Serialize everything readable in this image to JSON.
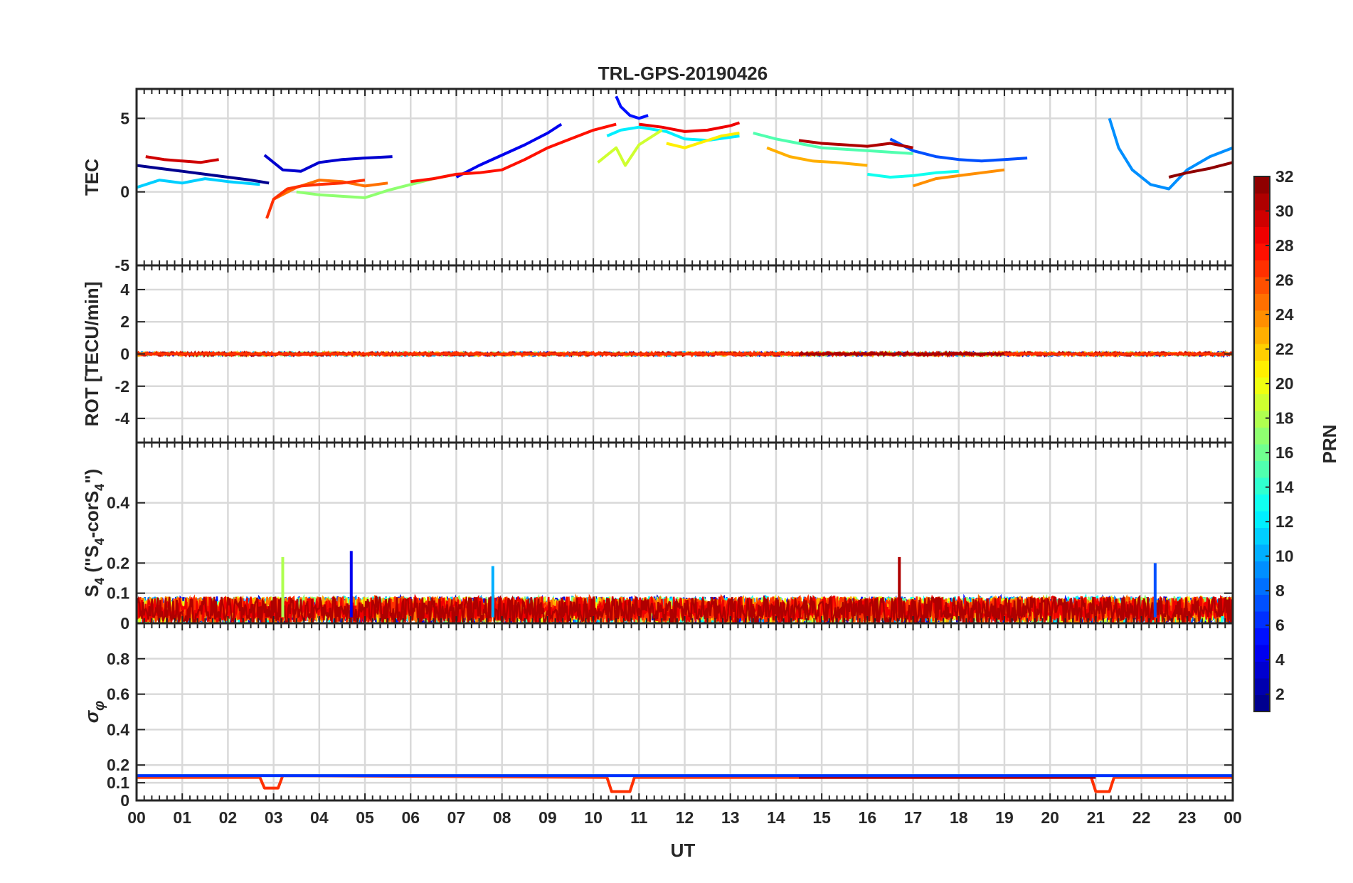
{
  "title": "TRL-GPS-20190426",
  "xlabel": "UT",
  "x_tick_labels": [
    "00",
    "01",
    "02",
    "03",
    "04",
    "05",
    "06",
    "07",
    "08",
    "09",
    "10",
    "11",
    "12",
    "13",
    "14",
    "15",
    "16",
    "17",
    "18",
    "19",
    "20",
    "21",
    "22",
    "23",
    "00"
  ],
  "colorbar": {
    "label": "PRN",
    "range": [
      1,
      32
    ],
    "ticks": [
      2,
      4,
      6,
      8,
      10,
      12,
      14,
      16,
      18,
      20,
      22,
      24,
      26,
      28,
      30,
      32
    ],
    "colormap": "jet",
    "levels": 32
  },
  "panels": [
    {
      "id": "tec",
      "ylabel": "TEC",
      "ylim": [
        -5,
        7
      ],
      "yticks": [
        -5,
        0,
        5
      ],
      "grid": true
    },
    {
      "id": "rot",
      "ylabel": "ROT [TECU/min]",
      "ylim": [
        -5.5,
        5.5
      ],
      "yticks": [
        -4,
        -2,
        0,
        2,
        4
      ],
      "grid": true
    },
    {
      "id": "s4",
      "ylabel": "S4 (\"S4-corS4\")",
      "ylim": [
        0,
        0.6
      ],
      "yticks": [
        0,
        0.1,
        0.2,
        0.4
      ],
      "grid": true
    },
    {
      "id": "sigma",
      "ylabel": "σφ",
      "ylim": [
        0,
        1
      ],
      "yticks": [
        0,
        0.1,
        0.2,
        0.4,
        0.6,
        0.8
      ],
      "grid": true
    }
  ],
  "chart_data": [
    {
      "type": "line",
      "panel": "tec",
      "x_unit": "UT hours",
      "series": [
        {
          "prn": 1,
          "x": [
            0,
            0.5,
            1,
            1.5,
            2,
            2.5,
            2.9
          ],
          "y": [
            1.8,
            1.6,
            1.4,
            1.2,
            1.0,
            0.8,
            0.6
          ]
        },
        {
          "prn": 3,
          "x": [
            2.8,
            3.2,
            3.6,
            4,
            4.5,
            5,
            5.6
          ],
          "y": [
            2.5,
            1.5,
            1.4,
            2.0,
            2.2,
            2.3,
            2.4
          ]
        },
        {
          "prn": 4,
          "x": [
            7,
            7.5,
            8,
            8.5,
            9,
            9.3
          ],
          "y": [
            1.0,
            1.8,
            2.5,
            3.2,
            4.0,
            4.6
          ]
        },
        {
          "prn": 5,
          "x": [
            10.5,
            10.6,
            10.8,
            11,
            11.2
          ],
          "y": [
            6.5,
            5.8,
            5.2,
            5.0,
            5.2
          ]
        },
        {
          "prn": 7,
          "x": [
            16.5,
            17,
            17.5,
            18,
            18.5,
            19,
            19.5
          ],
          "y": [
            3.6,
            2.8,
            2.4,
            2.2,
            2.1,
            2.2,
            2.3
          ]
        },
        {
          "prn": 9,
          "x": [
            21.3,
            21.5,
            21.8,
            22.2,
            22.6,
            23,
            23.5,
            24
          ],
          "y": [
            5.0,
            3.0,
            1.5,
            0.5,
            0.2,
            1.5,
            2.4,
            3.0
          ]
        },
        {
          "prn": 11,
          "x": [
            0,
            0.5,
            1,
            1.5,
            2,
            2.7
          ],
          "y": [
            0.3,
            0.8,
            0.6,
            0.9,
            0.7,
            0.5
          ]
        },
        {
          "prn": 12,
          "x": [
            10.3,
            10.6,
            11,
            11.6,
            12,
            12.5,
            13.2
          ],
          "y": [
            3.8,
            4.2,
            4.4,
            4.1,
            3.6,
            3.5,
            3.8
          ]
        },
        {
          "prn": 13,
          "x": [
            16,
            16.5,
            17,
            17.5,
            18
          ],
          "y": [
            1.2,
            1.0,
            1.1,
            1.3,
            1.4
          ]
        },
        {
          "prn": 15,
          "x": [
            13.5,
            14,
            14.5,
            15,
            15.5,
            16,
            17
          ],
          "y": [
            4.0,
            3.6,
            3.3,
            3.0,
            2.9,
            2.8,
            2.6
          ]
        },
        {
          "prn": 17,
          "x": [
            3.5,
            4,
            4.5,
            5,
            5.5,
            6,
            6.5,
            7
          ],
          "y": [
            0.0,
            -0.2,
            -0.3,
            -0.4,
            0.1,
            0.5,
            0.9,
            1.2
          ]
        },
        {
          "prn": 19,
          "x": [
            10.1,
            10.3,
            10.5,
            10.7,
            11,
            11.5
          ],
          "y": [
            2.0,
            2.5,
            3.0,
            1.8,
            3.2,
            4.2
          ]
        },
        {
          "prn": 21,
          "x": [
            11.6,
            12,
            12.4,
            12.8,
            13.2
          ],
          "y": [
            3.3,
            3.0,
            3.4,
            3.8,
            4.0
          ]
        },
        {
          "prn": 23,
          "x": [
            13.8,
            14.3,
            14.8,
            15.3,
            16
          ],
          "y": [
            3.0,
            2.4,
            2.1,
            2.0,
            1.8
          ]
        },
        {
          "prn": 24,
          "x": [
            17,
            17.5,
            18,
            18.5,
            19
          ],
          "y": [
            0.4,
            0.9,
            1.1,
            1.3,
            1.5
          ]
        },
        {
          "prn": 25,
          "x": [
            3,
            3.5,
            4,
            4.5,
            5,
            5.5
          ],
          "y": [
            -0.5,
            0.3,
            0.8,
            0.7,
            0.4,
            0.6
          ]
        },
        {
          "prn": 27,
          "x": [
            2.85,
            3,
            3.3,
            3.6,
            4,
            4.5,
            5
          ],
          "y": [
            -1.8,
            -0.5,
            0.2,
            0.4,
            0.5,
            0.6,
            0.8
          ]
        },
        {
          "prn": 28,
          "x": [
            6,
            6.5,
            7,
            7.5,
            8,
            8.5,
            9,
            9.5,
            10,
            10.5
          ],
          "y": [
            0.7,
            0.9,
            1.2,
            1.3,
            1.5,
            2.2,
            3.0,
            3.6,
            4.2,
            4.6
          ]
        },
        {
          "prn": 29,
          "x": [
            11,
            11.5,
            12,
            12.5,
            13,
            13.2
          ],
          "y": [
            4.6,
            4.4,
            4.1,
            4.2,
            4.5,
            4.7
          ]
        },
        {
          "prn": 30,
          "x": [
            0.2,
            0.6,
            1,
            1.4,
            1.8
          ],
          "y": [
            2.4,
            2.2,
            2.1,
            2.0,
            2.2
          ]
        },
        {
          "prn": 31,
          "x": [
            14.5,
            15,
            15.5,
            16,
            16.5,
            17
          ],
          "y": [
            3.5,
            3.3,
            3.2,
            3.1,
            3.3,
            3.0
          ]
        },
        {
          "prn": 32,
          "x": [
            22.6,
            23,
            23.5,
            24
          ],
          "y": [
            1.0,
            1.3,
            1.6,
            2.0
          ]
        }
      ]
    },
    {
      "type": "line",
      "panel": "rot",
      "x_unit": "UT hours",
      "series": [
        {
          "prn": 3,
          "x": [
            0,
            24
          ],
          "y": [
            0,
            0
          ]
        },
        {
          "prn": 17,
          "x": [
            0,
            24
          ],
          "y": [
            0,
            0
          ]
        },
        {
          "prn": 23,
          "x": [
            13.5,
            14.5
          ],
          "y": [
            0,
            0
          ]
        },
        {
          "prn": 27,
          "x": [
            0,
            24
          ],
          "y": [
            0,
            0
          ]
        },
        {
          "prn": 31,
          "x": [
            14.5,
            19
          ],
          "y": [
            0,
            0
          ]
        }
      ]
    },
    {
      "type": "line",
      "panel": "s4",
      "x_unit": "UT hours",
      "series": [
        {
          "prn": 4,
          "x": [
            4.7
          ],
          "y": [
            0.24
          ]
        },
        {
          "prn": 10,
          "x": [
            7.8
          ],
          "y": [
            0.19
          ]
        },
        {
          "prn": 18,
          "x": [
            3.2
          ],
          "y": [
            0.22
          ]
        },
        {
          "prn": 31,
          "x": [
            16.7
          ],
          "y": [
            0.22
          ]
        },
        {
          "prn": 7,
          "x": [
            22.3
          ],
          "y": [
            0.2
          ]
        }
      ]
    },
    {
      "type": "line",
      "panel": "sigma",
      "x_unit": "UT hours",
      "series": [
        {
          "prn": 27,
          "x": [
            0,
            2.7,
            2.8,
            3.1,
            3.2,
            10.3,
            10.4,
            10.8,
            10.9,
            20.9,
            21.0,
            21.3,
            21.4,
            24
          ],
          "y": [
            0.13,
            0.13,
            0.07,
            0.07,
            0.14,
            0.13,
            0.05,
            0.05,
            0.13,
            0.13,
            0.05,
            0.05,
            0.13,
            0.13
          ]
        },
        {
          "prn": 16,
          "x": [
            0,
            24
          ],
          "y": [
            0.14,
            0.14
          ]
        },
        {
          "prn": 31,
          "x": [
            14.5,
            21
          ],
          "y": [
            0.13,
            0.13
          ]
        },
        {
          "prn": 6,
          "x": [
            0,
            24
          ],
          "y": [
            0.14,
            0.14
          ]
        }
      ]
    }
  ]
}
